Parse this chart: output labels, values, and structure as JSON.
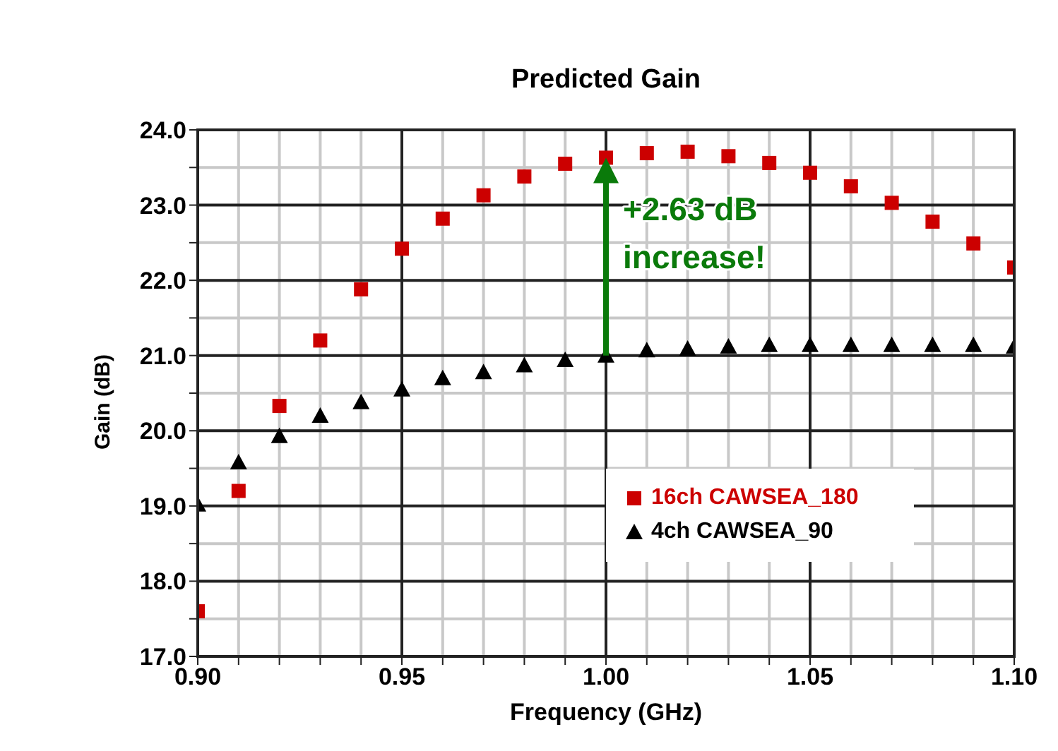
{
  "chart_data": {
    "type": "scatter",
    "title": "Predicted Gain",
    "xlabel": "Frequency (GHz)",
    "ylabel": "Gain (dB)",
    "x": [
      0.9,
      0.91,
      0.92,
      0.93,
      0.94,
      0.95,
      0.96,
      0.97,
      0.98,
      0.99,
      1.0,
      1.01,
      1.02,
      1.03,
      1.04,
      1.05,
      1.06,
      1.07,
      1.08,
      1.09,
      1.1
    ],
    "series": [
      {
        "name": "16ch CAWSEA_180",
        "color": "#cc0000",
        "marker": "square",
        "values": [
          17.6,
          19.2,
          20.33,
          21.2,
          21.88,
          22.42,
          22.82,
          23.13,
          23.38,
          23.55,
          23.63,
          23.69,
          23.71,
          23.65,
          23.56,
          23.43,
          23.25,
          23.03,
          22.78,
          22.49,
          22.17
        ]
      },
      {
        "name": "4ch CAWSEA_90",
        "color": "#000000",
        "marker": "triangle",
        "values": [
          19.02,
          19.58,
          19.93,
          20.2,
          20.38,
          20.55,
          20.7,
          20.78,
          20.87,
          20.94,
          21.0,
          21.07,
          21.09,
          21.12,
          21.14,
          21.14,
          21.14,
          21.14,
          21.14,
          21.14,
          21.12
        ]
      }
    ],
    "xlim": [
      0.9,
      1.1
    ],
    "xticks": [
      {
        "value": 0.9,
        "label": "0.90"
      },
      {
        "value": 0.91,
        "label": null
      },
      {
        "value": 0.92,
        "label": null
      },
      {
        "value": 0.93,
        "label": null
      },
      {
        "value": 0.94,
        "label": null
      },
      {
        "value": 0.95,
        "label": "0.95"
      },
      {
        "value": 0.96,
        "label": null
      },
      {
        "value": 0.97,
        "label": null
      },
      {
        "value": 0.98,
        "label": null
      },
      {
        "value": 0.99,
        "label": null
      },
      {
        "value": 1.0,
        "label": "1.00"
      },
      {
        "value": 1.01,
        "label": null
      },
      {
        "value": 1.02,
        "label": null
      },
      {
        "value": 1.03,
        "label": null
      },
      {
        "value": 1.04,
        "label": null
      },
      {
        "value": 1.05,
        "label": "1.05"
      },
      {
        "value": 1.06,
        "label": null
      },
      {
        "value": 1.07,
        "label": null
      },
      {
        "value": 1.08,
        "label": null
      },
      {
        "value": 1.09,
        "label": null
      },
      {
        "value": 1.1,
        "label": "1.10"
      }
    ],
    "ylim": [
      17.0,
      24.0
    ],
    "yticks": [
      {
        "value": 17.0,
        "label": "17.0"
      },
      {
        "value": 17.5,
        "label": null
      },
      {
        "value": 18.0,
        "label": "18.0"
      },
      {
        "value": 18.5,
        "label": null
      },
      {
        "value": 19.0,
        "label": "19.0"
      },
      {
        "value": 19.5,
        "label": null
      },
      {
        "value": 20.0,
        "label": "20.0"
      },
      {
        "value": 20.5,
        "label": null
      },
      {
        "value": 21.0,
        "label": "21.0"
      },
      {
        "value": 21.5,
        "label": null
      },
      {
        "value": 22.0,
        "label": "22.0"
      },
      {
        "value": 22.5,
        "label": null
      },
      {
        "value": 23.0,
        "label": "23.0"
      },
      {
        "value": 23.5,
        "label": null
      },
      {
        "value": 24.0,
        "label": "24.0"
      }
    ],
    "grid": true,
    "legend": "bottom right",
    "annotations": [
      {
        "text": "+2.63 dB increase!",
        "x": 1.0,
        "y": 23.63
      }
    ]
  }
}
